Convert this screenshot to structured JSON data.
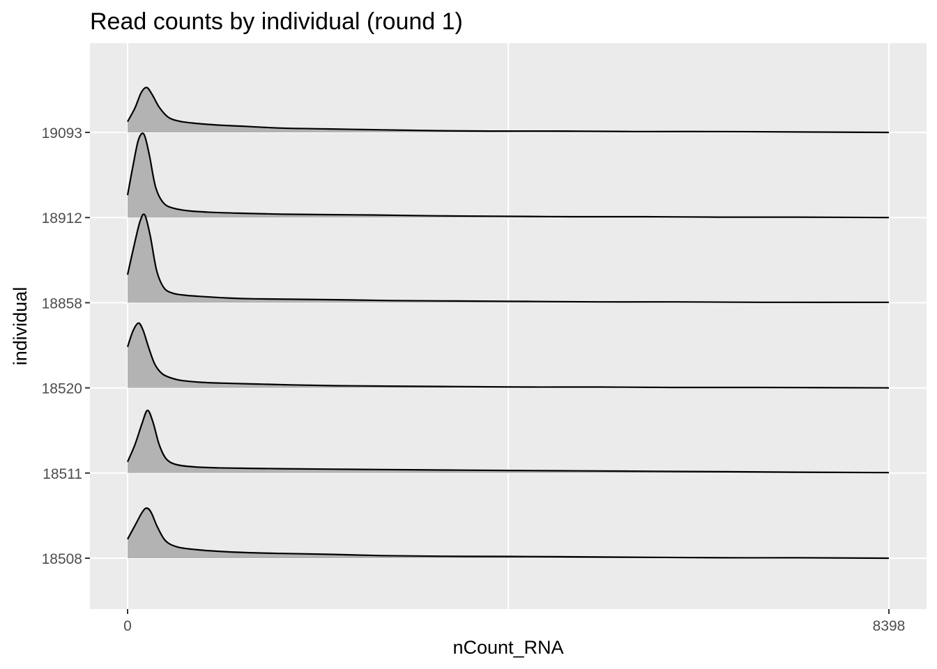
{
  "chart_data": {
    "type": "ridgeline",
    "title": "Read counts by individual (round 1)",
    "xlabel": "nCount_RNA",
    "ylabel": "individual",
    "xlim": [
      0,
      8398
    ],
    "x_ticks": [
      0,
      8398
    ],
    "x_tick_labels": [
      "0",
      "8398"
    ],
    "grid": true,
    "fill_color": "#b3b3b3",
    "line_color": "#000000",
    "panel_color": "#ebebeb",
    "categories": [
      "18508",
      "18511",
      "18520",
      "18858",
      "18912",
      "19093"
    ],
    "series": [
      {
        "name": "18508",
        "x": [
          0,
          80,
          160,
          210,
          260,
          330,
          420,
          550,
          750,
          1000,
          1300,
          1700,
          2200,
          2800,
          3500,
          4200,
          5000,
          5800,
          6600,
          7400,
          8398
        ],
        "density": [
          0.44,
          0.75,
          1.06,
          1.16,
          1.06,
          0.72,
          0.4,
          0.26,
          0.2,
          0.16,
          0.13,
          0.11,
          0.09,
          0.06,
          0.045,
          0.04,
          0.03,
          0.02,
          0.01,
          0.01,
          0.0
        ]
      },
      {
        "name": "18511",
        "x": [
          0,
          80,
          160,
          220,
          280,
          350,
          430,
          550,
          750,
          1000,
          1300,
          1700,
          2200,
          2800,
          3500,
          4200,
          5000,
          5800,
          6600,
          7400,
          8398
        ],
        "density": [
          0.26,
          0.65,
          1.15,
          1.45,
          1.18,
          0.65,
          0.32,
          0.19,
          0.14,
          0.12,
          0.11,
          0.1,
          0.09,
          0.08,
          0.07,
          0.06,
          0.05,
          0.04,
          0.03,
          0.02,
          0.01
        ]
      },
      {
        "name": "18520",
        "x": [
          0,
          60,
          120,
          170,
          230,
          300,
          380,
          480,
          600,
          800,
          1050,
          1400,
          1800,
          2300,
          2900,
          3600,
          4400,
          5200,
          6000,
          7000,
          8398
        ],
        "density": [
          0.95,
          1.32,
          1.5,
          1.34,
          0.95,
          0.55,
          0.33,
          0.23,
          0.17,
          0.13,
          0.11,
          0.09,
          0.07,
          0.05,
          0.04,
          0.03,
          0.02,
          0.02,
          0.01,
          0.01,
          0.0
        ]
      },
      {
        "name": "18858",
        "x": [
          0,
          80,
          140,
          190,
          250,
          320,
          400,
          500,
          650,
          850,
          1100,
          1400,
          1800,
          2300,
          2900,
          3600,
          4400,
          5200,
          6000,
          7000,
          8398
        ],
        "density": [
          0.65,
          1.4,
          1.9,
          2.03,
          1.55,
          0.75,
          0.35,
          0.22,
          0.17,
          0.14,
          0.11,
          0.09,
          0.08,
          0.07,
          0.05,
          0.04,
          0.03,
          0.02,
          0.02,
          0.01,
          0.01
        ]
      },
      {
        "name": "18912",
        "x": [
          0,
          60,
          120,
          180,
          240,
          310,
          400,
          520,
          700,
          950,
          1250,
          1650,
          2100,
          2700,
          3400,
          4100,
          4900,
          5700,
          6500,
          7400,
          8398
        ],
        "density": [
          0.52,
          1.2,
          1.8,
          1.93,
          1.45,
          0.7,
          0.33,
          0.21,
          0.15,
          0.12,
          0.1,
          0.08,
          0.07,
          0.06,
          0.04,
          0.03,
          0.02,
          0.02,
          0.01,
          0.01,
          0.0
        ]
      },
      {
        "name": "19093",
        "x": [
          0,
          80,
          150,
          210,
          270,
          350,
          450,
          570,
          750,
          1000,
          1300,
          1700,
          2200,
          2800,
          3400,
          4000,
          4800,
          5600,
          6500,
          7400,
          8398
        ],
        "density": [
          0.25,
          0.56,
          0.92,
          1.04,
          0.88,
          0.58,
          0.35,
          0.26,
          0.21,
          0.17,
          0.14,
          0.1,
          0.08,
          0.06,
          0.04,
          0.03,
          0.03,
          0.02,
          0.02,
          0.01,
          0.0
        ]
      }
    ]
  }
}
